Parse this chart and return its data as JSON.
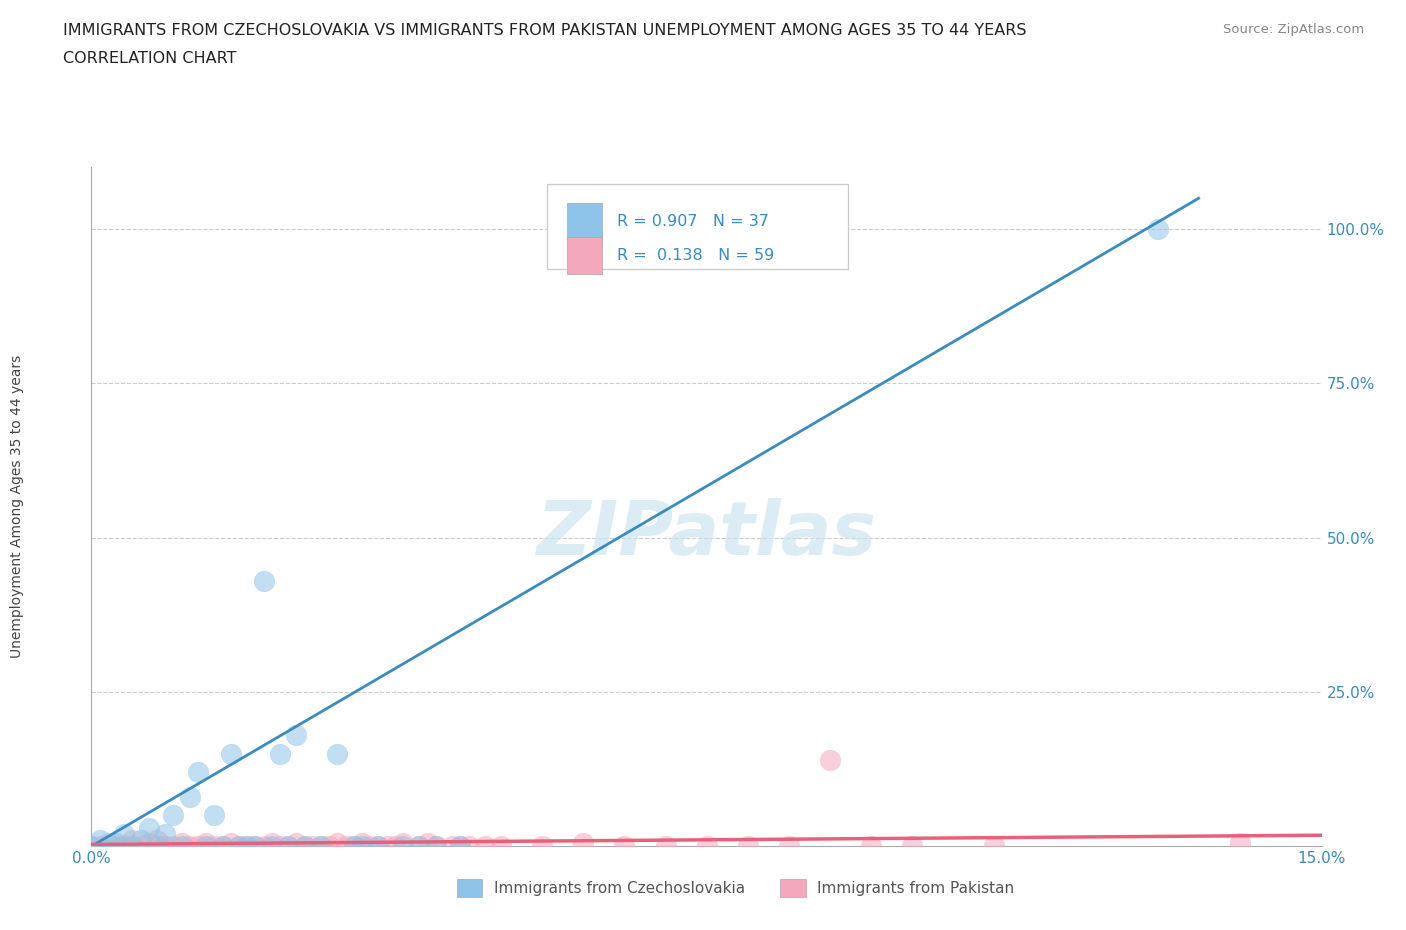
{
  "title_line1": "IMMIGRANTS FROM CZECHOSLOVAKIA VS IMMIGRANTS FROM PAKISTAN UNEMPLOYMENT AMONG AGES 35 TO 44 YEARS",
  "title_line2": "CORRELATION CHART",
  "source": "Source: ZipAtlas.com",
  "ylabel": "Unemployment Among Ages 35 to 44 years",
  "xmin": 0.0,
  "xmax": 0.15,
  "ymin": 0.0,
  "ymax": 1.1,
  "blue_color": "#8ec4e8",
  "pink_color": "#f4a8bc",
  "blue_line_color": "#3a8bbf",
  "pink_line_color": "#e8607a",
  "legend_r1_val": "0.907",
  "legend_n1_val": "37",
  "legend_r2_val": "0.138",
  "legend_n2_val": "59",
  "legend_label1": "Immigrants from Czechoslovakia",
  "legend_label2": "Immigrants from Pakistan",
  "czechoslovakia_x": [
    0.0,
    0.001,
    0.002,
    0.003,
    0.004,
    0.005,
    0.006,
    0.007,
    0.008,
    0.009,
    0.01,
    0.011,
    0.012,
    0.013,
    0.014,
    0.015,
    0.016,
    0.017,
    0.018,
    0.019,
    0.02,
    0.021,
    0.022,
    0.023,
    0.024,
    0.025,
    0.026,
    0.028,
    0.03,
    0.032,
    0.033,
    0.035,
    0.038,
    0.04,
    0.042,
    0.045,
    0.13
  ],
  "czechoslovakia_y": [
    0.0,
    0.01,
    0.0,
    0.005,
    0.02,
    0.0,
    0.01,
    0.03,
    0.0,
    0.02,
    0.05,
    0.0,
    0.08,
    0.12,
    0.0,
    0.05,
    0.0,
    0.15,
    0.0,
    0.0,
    0.0,
    0.43,
    0.0,
    0.15,
    0.0,
    0.18,
    0.0,
    0.0,
    0.15,
    0.0,
    0.0,
    0.0,
    0.0,
    0.0,
    0.0,
    0.0,
    1.0
  ],
  "pakistan_x": [
    0.0,
    0.001,
    0.002,
    0.003,
    0.004,
    0.005,
    0.006,
    0.007,
    0.008,
    0.009,
    0.01,
    0.011,
    0.012,
    0.013,
    0.014,
    0.015,
    0.016,
    0.017,
    0.018,
    0.019,
    0.02,
    0.021,
    0.022,
    0.023,
    0.024,
    0.025,
    0.026,
    0.027,
    0.028,
    0.029,
    0.03,
    0.031,
    0.032,
    0.033,
    0.034,
    0.035,
    0.036,
    0.037,
    0.038,
    0.04,
    0.041,
    0.042,
    0.044,
    0.045,
    0.046,
    0.048,
    0.05,
    0.055,
    0.06,
    0.065,
    0.07,
    0.075,
    0.08,
    0.085,
    0.09,
    0.095,
    0.1,
    0.11,
    0.14
  ],
  "pakistan_y": [
    0.0,
    0.0,
    0.005,
    0.0,
    0.0,
    0.01,
    0.0,
    0.005,
    0.01,
    0.0,
    0.0,
    0.005,
    0.0,
    0.0,
    0.005,
    0.0,
    0.0,
    0.005,
    0.0,
    0.0,
    0.0,
    0.0,
    0.005,
    0.0,
    0.0,
    0.005,
    0.0,
    0.0,
    0.0,
    0.0,
    0.005,
    0.0,
    0.0,
    0.005,
    0.0,
    0.0,
    0.0,
    0.0,
    0.005,
    0.0,
    0.005,
    0.0,
    0.0,
    0.0,
    0.0,
    0.0,
    0.0,
    0.0,
    0.005,
    0.0,
    0.0,
    0.0,
    0.0,
    0.0,
    0.14,
    0.0,
    0.0,
    0.0,
    0.005
  ],
  "blue_trendline_x": [
    0.0,
    0.135
  ],
  "blue_trendline_y": [
    0.0,
    1.05
  ],
  "pink_trendline_x": [
    0.0,
    0.15
  ],
  "pink_trendline_y": [
    0.003,
    0.018
  ]
}
